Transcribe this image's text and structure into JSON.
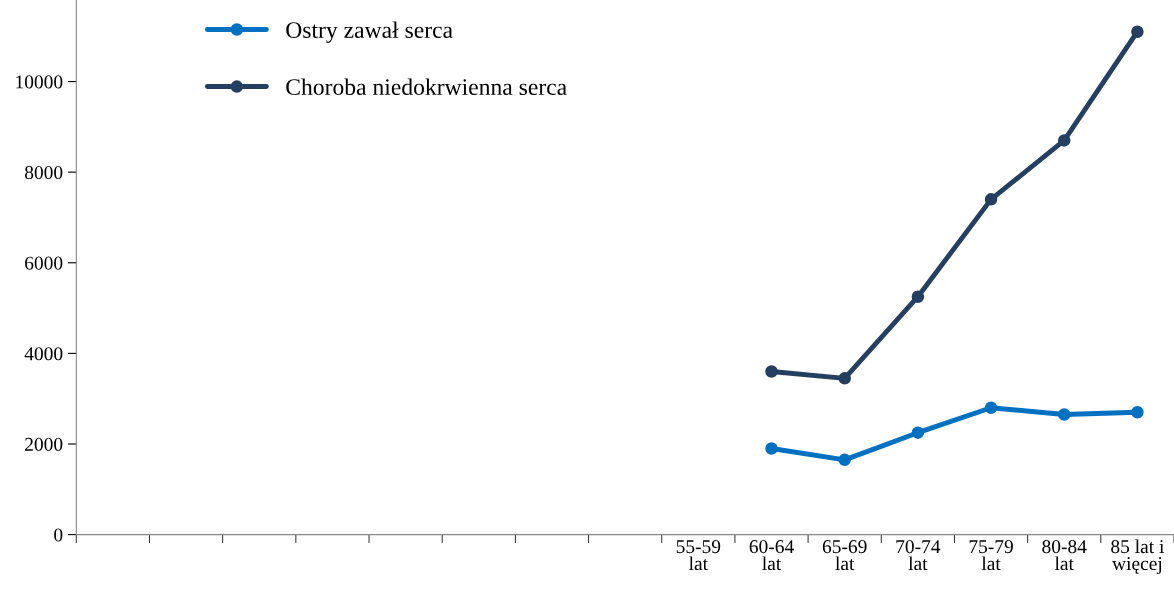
{
  "chart_data": {
    "type": "line",
    "categories": [
      null,
      null,
      null,
      null,
      null,
      null,
      null,
      null,
      "55-59\nlat",
      "60-64\nlat",
      "65-69\nlat",
      "70-74\nlat",
      "75-79\nlat",
      "80-84\nlat",
      "85 lat i\nwięcej"
    ],
    "series": [
      {
        "name": "Ostry zawał serca",
        "color": "#0070c0",
        "values": [
          null,
          null,
          null,
          null,
          null,
          null,
          null,
          null,
          null,
          1900,
          1650,
          2250,
          2800,
          2650,
          2700
        ]
      },
      {
        "name": "Choroba niedokrwienna serca",
        "color": "#243f60",
        "values": [
          null,
          null,
          null,
          null,
          null,
          null,
          null,
          null,
          null,
          3600,
          3450,
          5250,
          7400,
          8700,
          11100
        ]
      }
    ],
    "ylim": [
      0,
      11800
    ],
    "yticks": [
      0,
      2000,
      4000,
      6000,
      8000,
      10000
    ],
    "grid": false,
    "legend": "top left",
    "marker": "circle",
    "line_style": "solid"
  }
}
